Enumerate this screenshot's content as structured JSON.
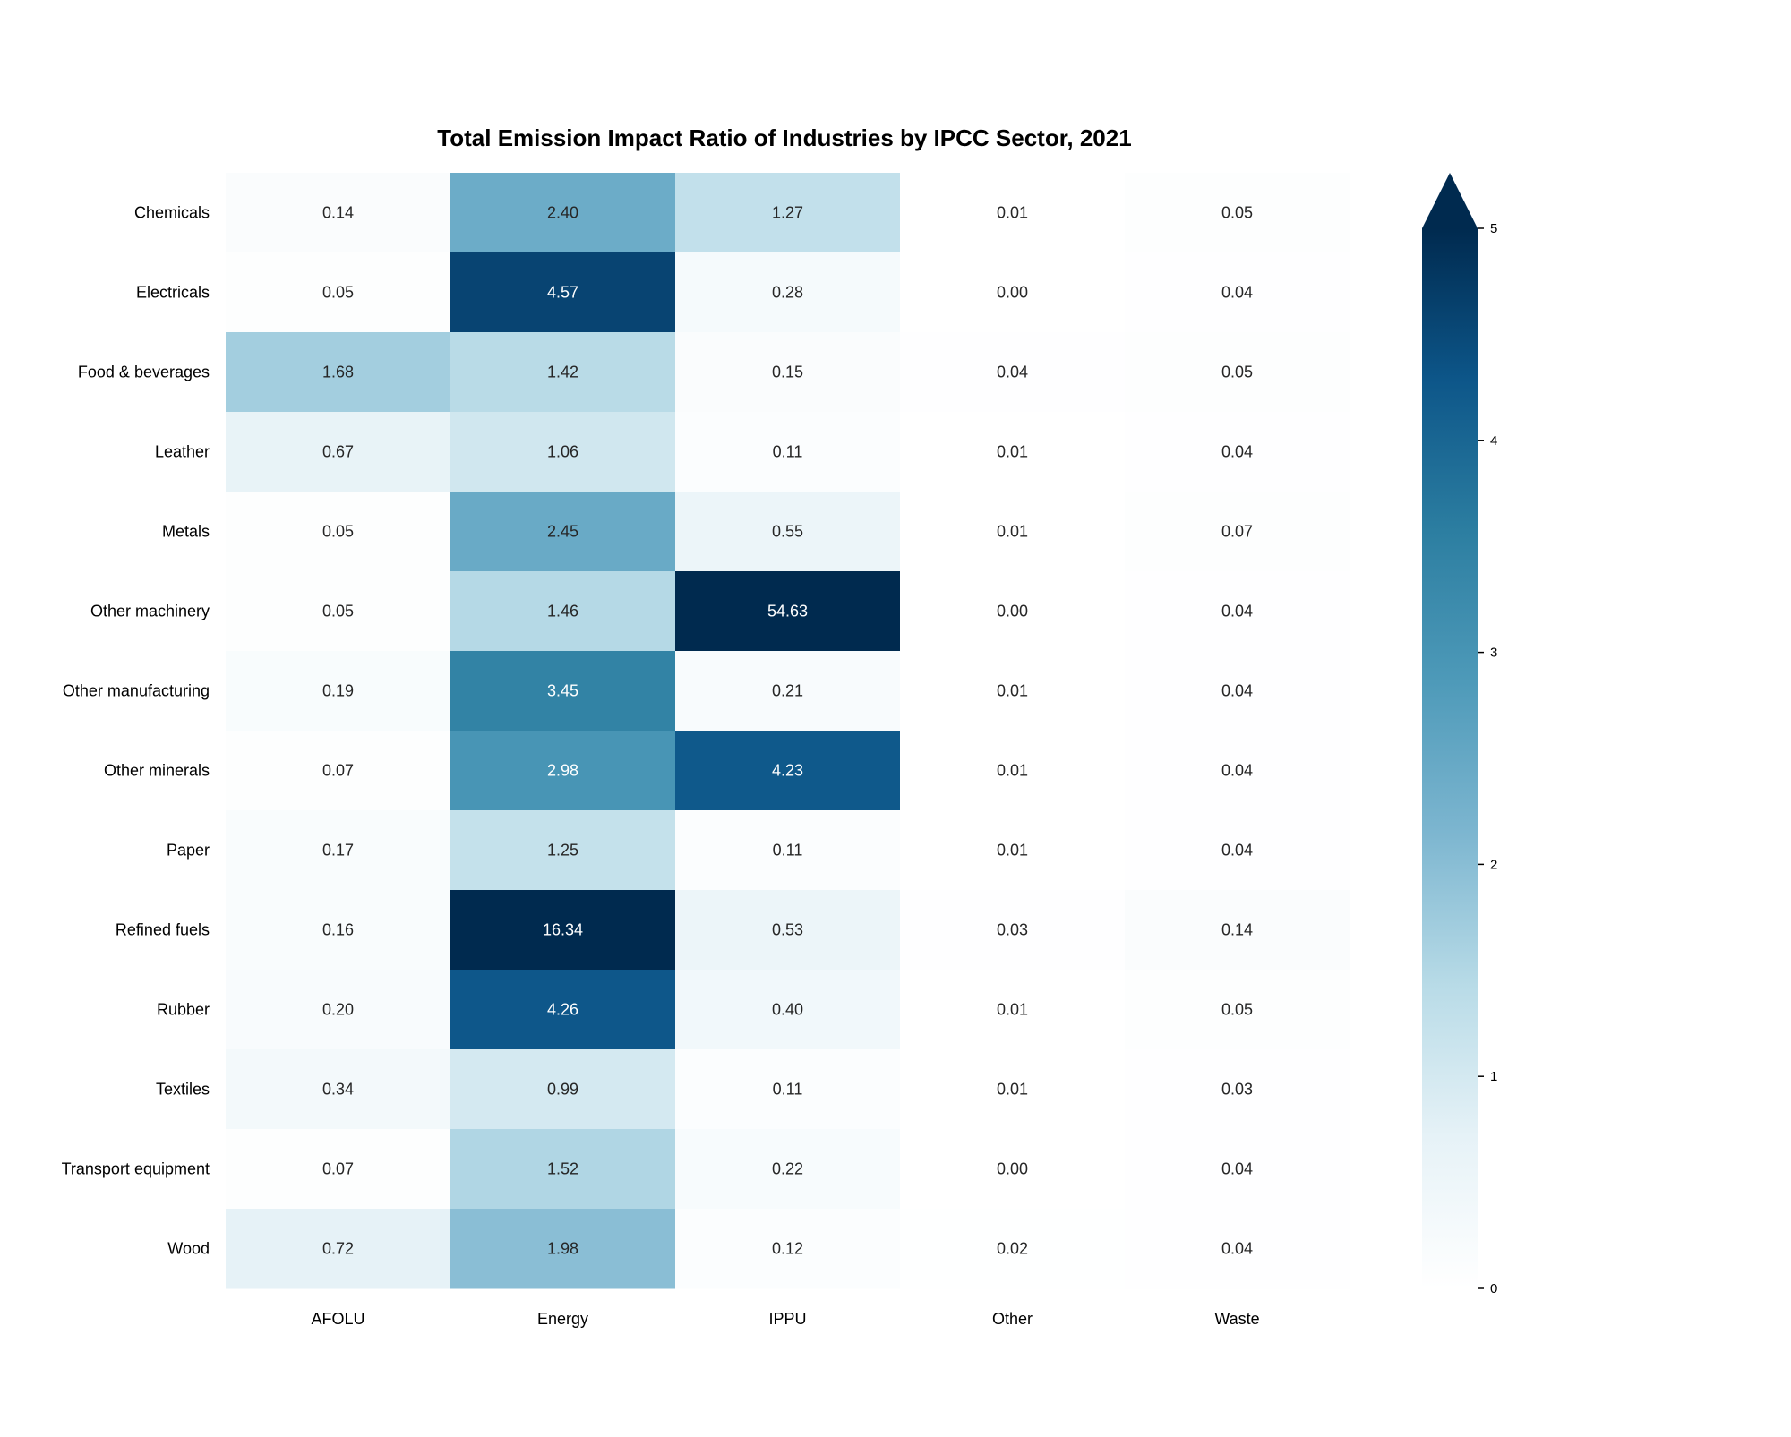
{
  "chart_data": {
    "type": "heatmap",
    "title": "Total Emission Impact Ratio of Industries by IPCC Sector, 2021",
    "xlabel": "",
    "ylabel": "",
    "x_categories": [
      "AFOLU",
      "Energy",
      "IPPU",
      "Other",
      "Waste"
    ],
    "y_categories": [
      "Chemicals",
      "Electricals",
      "Food & beverages",
      "Leather",
      "Metals",
      "Other machinery",
      "Other manufacturing",
      "Other minerals",
      "Paper",
      "Refined fuels",
      "Rubber",
      "Textiles",
      "Transport equipment",
      "Wood"
    ],
    "values": [
      [
        0.14,
        2.4,
        1.27,
        0.01,
        0.05
      ],
      [
        0.05,
        4.57,
        0.28,
        0.0,
        0.04
      ],
      [
        1.68,
        1.42,
        0.15,
        0.04,
        0.05
      ],
      [
        0.67,
        1.06,
        0.11,
        0.01,
        0.04
      ],
      [
        0.05,
        2.45,
        0.55,
        0.01,
        0.07
      ],
      [
        0.05,
        1.46,
        54.63,
        0.0,
        0.04
      ],
      [
        0.19,
        3.45,
        0.21,
        0.01,
        0.04
      ],
      [
        0.07,
        2.98,
        4.23,
        0.01,
        0.04
      ],
      [
        0.17,
        1.25,
        0.11,
        0.01,
        0.04
      ],
      [
        0.16,
        16.34,
        0.53,
        0.03,
        0.14
      ],
      [
        0.2,
        4.26,
        0.4,
        0.01,
        0.05
      ],
      [
        0.34,
        0.99,
        0.11,
        0.01,
        0.03
      ],
      [
        0.07,
        1.52,
        0.22,
        0.0,
        0.04
      ],
      [
        0.72,
        1.98,
        0.12,
        0.02,
        0.04
      ]
    ],
    "value_format": "0.00",
    "colorbar": {
      "min": 0,
      "max": 5,
      "extend": "max",
      "ticks": [
        "0",
        "1",
        "2",
        "3",
        "4",
        "5"
      ],
      "colormap": "PuBu-like blues",
      "color_stops": [
        "#ffffff",
        "#e6f2f7",
        "#b8dbe7",
        "#7db6d0",
        "#4e9ab9",
        "#2c7ea1",
        "#0d5689",
        "#002a4f"
      ]
    },
    "grid": false
  }
}
